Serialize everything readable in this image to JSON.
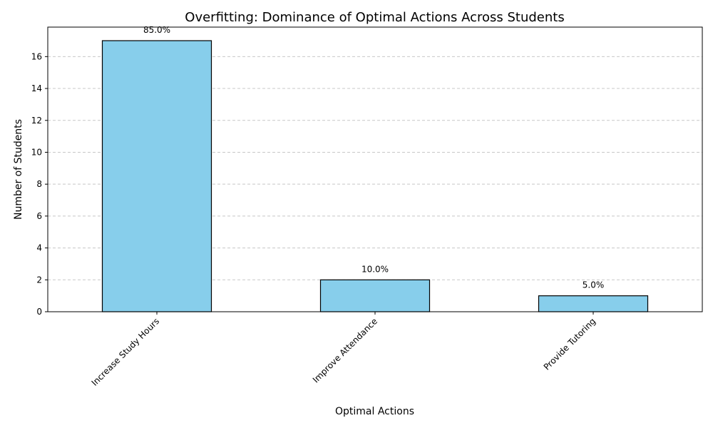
{
  "chart_data": {
    "type": "bar",
    "title": "Overfitting: Dominance of Optimal Actions Across Students",
    "xlabel": "Optimal Actions",
    "ylabel": "Number of Students",
    "categories": [
      "Increase Study Hours",
      "Improve Attendance",
      "Provide Tutoring"
    ],
    "values": [
      17,
      2,
      1
    ],
    "data_labels": [
      "85.0%",
      "10.0%",
      "5.0%"
    ],
    "ylim": [
      0,
      17.85
    ],
    "yticks": [
      0,
      2,
      4,
      6,
      8,
      10,
      12,
      14,
      16
    ],
    "grid": "y-dashed",
    "bar_color": "#87ceeb",
    "bar_edge_color": "#000000"
  }
}
